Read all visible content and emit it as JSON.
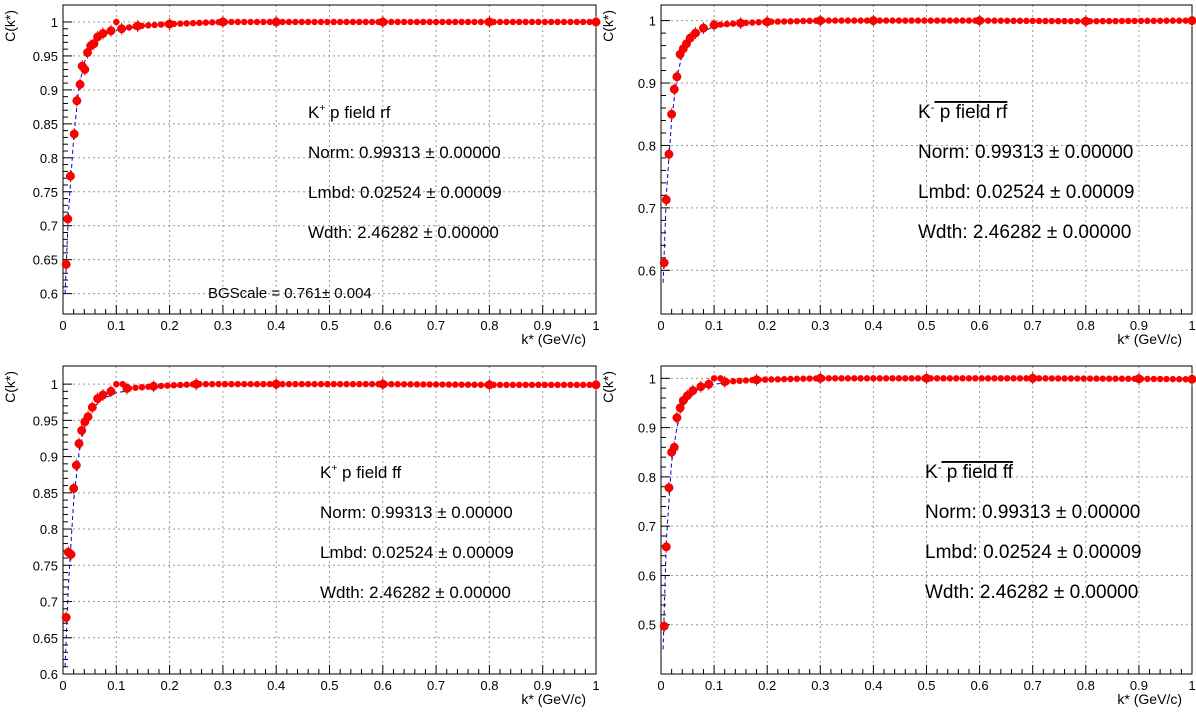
{
  "chart_data": [
    {
      "type": "scatter",
      "label_lines": [
        {
          "pre": "K",
          "sup": "+",
          "post": " p field rf"
        },
        {
          "pre": "Norm: 0.99313 ",
          "pm": "±",
          "post": " 0.00000"
        },
        {
          "pre": "Lmbd: 0.02524 ",
          "pm": "±",
          "post": " 0.00009"
        },
        {
          "pre": "Wdth: 2.46282 ",
          "pm": "±",
          "post": " 0.00000"
        }
      ],
      "extra_note": {
        "pre": "BGScale = 0.761",
        "pm": "±",
        "post": " 0.004"
      },
      "xlabel": "k* (GeV/c)",
      "ylabel": "C(k*)",
      "xlim": [
        0,
        1
      ],
      "ylim": [
        0.57,
        1.025
      ],
      "xticks": [
        "0",
        "0.1",
        "0.2",
        "0.3",
        "0.4",
        "0.5",
        "0.6",
        "0.7",
        "0.8",
        "0.9",
        "1"
      ],
      "yticks": [
        "0.6",
        "0.65",
        "0.7",
        "0.75",
        "0.8",
        "0.85",
        "0.9",
        "0.95",
        "1"
      ],
      "grid": true,
      "points": [
        [
          0.006,
          0.643
        ],
        [
          0.009,
          0.71
        ],
        [
          0.014,
          0.773
        ],
        [
          0.021,
          0.835
        ],
        [
          0.026,
          0.884
        ],
        [
          0.032,
          0.908
        ],
        [
          0.036,
          0.935
        ],
        [
          0.041,
          0.93
        ],
        [
          0.046,
          0.955
        ],
        [
          0.052,
          0.965
        ],
        [
          0.058,
          0.968
        ],
        [
          0.065,
          0.978
        ],
        [
          0.075,
          0.983
        ],
        [
          0.09,
          0.987
        ],
        [
          0.11,
          0.99
        ],
        [
          0.14,
          0.994
        ],
        [
          0.2,
          0.997
        ],
        [
          0.3,
          1.0
        ],
        [
          0.4,
          1.0
        ],
        [
          0.6,
          1.0
        ],
        [
          0.8,
          1.0
        ],
        [
          1.0,
          1.0
        ]
      ],
      "fit": [
        [
          0.004,
          0.6
        ],
        [
          0.01,
          0.715
        ],
        [
          0.02,
          0.83
        ],
        [
          0.03,
          0.905
        ],
        [
          0.04,
          0.94
        ],
        [
          0.05,
          0.96
        ],
        [
          0.07,
          0.978
        ],
        [
          0.1,
          0.988
        ],
        [
          0.15,
          0.994
        ],
        [
          0.2,
          0.997
        ],
        [
          0.3,
          0.999
        ],
        [
          1.0,
          1.0
        ]
      ]
    },
    {
      "type": "scatter",
      "label_lines": [
        {
          "pre": "K",
          "sup": "-",
          "post": " p field rf",
          "bar_p": true
        },
        {
          "pre": "Norm: 0.99313 ",
          "pm": "±",
          "post": " 0.00000"
        },
        {
          "pre": "Lmbd: 0.02524 ",
          "pm": "±",
          "post": " 0.00009"
        },
        {
          "pre": "Wdth: 2.46282 ",
          "pm": "±",
          "post": " 0.00000"
        }
      ],
      "xlabel": "k* (GeV/c)",
      "ylabel": "C(k*)",
      "xlim": [
        0,
        1
      ],
      "ylim": [
        0.53,
        1.025
      ],
      "xticks": [
        "0",
        "0.1",
        "0.2",
        "0.3",
        "0.4",
        "0.5",
        "0.6",
        "0.7",
        "0.8",
        "0.9",
        "1"
      ],
      "yticks": [
        "0.6",
        "0.7",
        "0.8",
        "0.9",
        "1"
      ],
      "grid": true,
      "points": [
        [
          0.006,
          0.612
        ],
        [
          0.01,
          0.713
        ],
        [
          0.015,
          0.786
        ],
        [
          0.02,
          0.85
        ],
        [
          0.025,
          0.89
        ],
        [
          0.03,
          0.91
        ],
        [
          0.036,
          0.946
        ],
        [
          0.042,
          0.955
        ],
        [
          0.048,
          0.963
        ],
        [
          0.055,
          0.972
        ],
        [
          0.065,
          0.98
        ],
        [
          0.08,
          0.988
        ],
        [
          0.1,
          0.993
        ],
        [
          0.15,
          0.996
        ],
        [
          0.2,
          0.998
        ],
        [
          0.3,
          1.0
        ],
        [
          0.4,
          1.0
        ],
        [
          0.6,
          1.0
        ],
        [
          0.8,
          0.999
        ],
        [
          1.0,
          1.0
        ]
      ],
      "fit": [
        [
          0.004,
          0.58
        ],
        [
          0.01,
          0.72
        ],
        [
          0.02,
          0.84
        ],
        [
          0.03,
          0.91
        ],
        [
          0.04,
          0.945
        ],
        [
          0.05,
          0.963
        ],
        [
          0.07,
          0.98
        ],
        [
          0.1,
          0.99
        ],
        [
          0.15,
          0.995
        ],
        [
          0.2,
          0.998
        ],
        [
          0.3,
          0.999
        ],
        [
          1.0,
          1.0
        ]
      ]
    },
    {
      "type": "scatter",
      "label_lines": [
        {
          "pre": "K",
          "sup": "+",
          "post": " p field ff"
        },
        {
          "pre": "Norm: 0.99313 ",
          "pm": "±",
          "post": " 0.00000"
        },
        {
          "pre": "Lmbd: 0.02524 ",
          "pm": "±",
          "post": " 0.00009"
        },
        {
          "pre": "Wdth: 2.46282 ",
          "pm": "±",
          "post": " 0.00000"
        }
      ],
      "xlabel": "k* (GeV/c)",
      "ylabel": "C(k*)",
      "xlim": [
        0,
        1
      ],
      "ylim": [
        0.6,
        1.025
      ],
      "xticks": [
        "0",
        "0.1",
        "0.2",
        "0.3",
        "0.4",
        "0.5",
        "0.6",
        "0.7",
        "0.8",
        "0.9",
        "1"
      ],
      "yticks": [
        "0.6",
        "0.65",
        "0.7",
        "0.75",
        "0.8",
        "0.85",
        "0.9",
        "0.95",
        "1"
      ],
      "grid": true,
      "points": [
        [
          0.006,
          0.678
        ],
        [
          0.01,
          0.768
        ],
        [
          0.015,
          0.765
        ],
        [
          0.02,
          0.856
        ],
        [
          0.025,
          0.888
        ],
        [
          0.03,
          0.918
        ],
        [
          0.035,
          0.936
        ],
        [
          0.041,
          0.948
        ],
        [
          0.047,
          0.955
        ],
        [
          0.055,
          0.968
        ],
        [
          0.065,
          0.98
        ],
        [
          0.075,
          0.985
        ],
        [
          0.09,
          0.99
        ],
        [
          0.12,
          0.994
        ],
        [
          0.17,
          0.997
        ],
        [
          0.25,
          1.0
        ],
        [
          0.4,
          1.0
        ],
        [
          0.6,
          1.0
        ],
        [
          0.8,
          0.999
        ],
        [
          1.0,
          0.999
        ]
      ],
      "fit": [
        [
          0.004,
          0.61
        ],
        [
          0.01,
          0.72
        ],
        [
          0.02,
          0.84
        ],
        [
          0.03,
          0.905
        ],
        [
          0.04,
          0.94
        ],
        [
          0.05,
          0.96
        ],
        [
          0.07,
          0.978
        ],
        [
          0.1,
          0.988
        ],
        [
          0.15,
          0.994
        ],
        [
          0.2,
          0.997
        ],
        [
          0.3,
          0.999
        ],
        [
          1.0,
          1.0
        ]
      ]
    },
    {
      "type": "scatter",
      "label_lines": [
        {
          "pre": "K",
          "sup": "-",
          "post": " p field ff",
          "bar_p": true
        },
        {
          "pre": "Norm: 0.99313 ",
          "pm": "±",
          "post": " 0.00000"
        },
        {
          "pre": "Lmbd: 0.02524 ",
          "pm": "±",
          "post": " 0.00009"
        },
        {
          "pre": "Wdth: 2.46282 ",
          "pm": "±",
          "post": " 0.00000"
        }
      ],
      "xlabel": "k* (GeV/c)",
      "ylabel": "C(k*)",
      "xlim": [
        0,
        1
      ],
      "ylim": [
        0.4,
        1.025
      ],
      "xticks": [
        "0",
        "0.1",
        "0.2",
        "0.3",
        "0.4",
        "0.5",
        "0.6",
        "0.7",
        "0.8",
        "0.9",
        "1"
      ],
      "yticks": [
        "0.5",
        "0.6",
        "0.7",
        "0.8",
        "0.9",
        "1"
      ],
      "grid": true,
      "points": [
        [
          0.006,
          0.497
        ],
        [
          0.01,
          0.658
        ],
        [
          0.015,
          0.778
        ],
        [
          0.02,
          0.85
        ],
        [
          0.025,
          0.86
        ],
        [
          0.03,
          0.92
        ],
        [
          0.036,
          0.94
        ],
        [
          0.042,
          0.955
        ],
        [
          0.05,
          0.965
        ],
        [
          0.06,
          0.975
        ],
        [
          0.075,
          0.983
        ],
        [
          0.09,
          0.988
        ],
        [
          0.12,
          0.993
        ],
        [
          0.18,
          0.997
        ],
        [
          0.3,
          1.0
        ],
        [
          0.5,
          1.0
        ],
        [
          0.7,
          1.0
        ],
        [
          0.9,
          0.999
        ],
        [
          1.0,
          0.998
        ]
      ],
      "fit": [
        [
          0.004,
          0.45
        ],
        [
          0.01,
          0.67
        ],
        [
          0.02,
          0.83
        ],
        [
          0.03,
          0.9
        ],
        [
          0.04,
          0.94
        ],
        [
          0.05,
          0.96
        ],
        [
          0.07,
          0.978
        ],
        [
          0.1,
          0.988
        ],
        [
          0.15,
          0.994
        ],
        [
          0.2,
          0.997
        ],
        [
          0.3,
          0.999
        ],
        [
          1.0,
          1.0
        ]
      ]
    }
  ],
  "colors": {
    "marker": "#ff0000",
    "fit": "#0000cc",
    "grid": "#999999",
    "axis": "#000000"
  }
}
